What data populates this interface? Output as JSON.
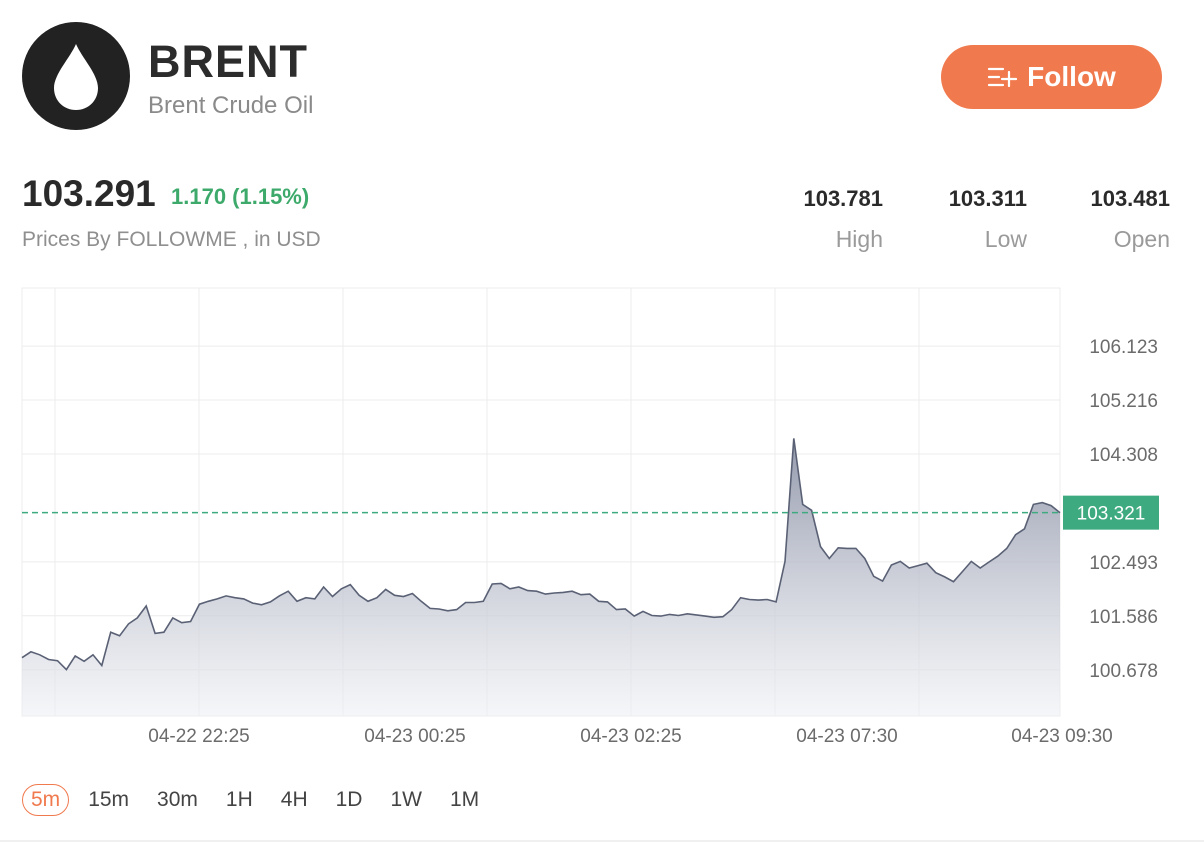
{
  "instrument": {
    "symbol": "BRENT",
    "name": "Brent Crude Oil",
    "logo_icon": "oil-drop-icon"
  },
  "follow_button": {
    "label": "Follow",
    "icon": "add-list-icon",
    "color": "#f07a4e"
  },
  "quote": {
    "price": "103.291",
    "change": "1.170 (1.15%)",
    "source": "Prices By FOLLOWME , in USD",
    "change_color": "#3daa6b"
  },
  "stats": [
    {
      "value": "103.781",
      "label": "High"
    },
    {
      "value": "103.311",
      "label": "Low"
    },
    {
      "value": "103.481",
      "label": "Open"
    }
  ],
  "chart_data": {
    "type": "area",
    "x_tick_labels": [
      "04-22 22:25",
      "04-23 00:25",
      "04-23 02:25",
      "04-23 07:30",
      "04-23 09:30"
    ],
    "y_tick_labels": [
      "106.123",
      "105.216",
      "104.308",
      "102.493",
      "101.586",
      "100.678"
    ],
    "ylim": [
      99.9,
      107.1
    ],
    "current_price": 103.321,
    "current_price_label": "103.321",
    "grid": true,
    "line_color": "#5a6175",
    "marker_color": "#3daa80",
    "values": [
      100.88,
      100.98,
      100.93,
      100.85,
      100.83,
      100.68,
      100.91,
      100.82,
      100.93,
      100.75,
      101.31,
      101.25,
      101.45,
      101.55,
      101.75,
      101.29,
      101.31,
      101.55,
      101.47,
      101.49,
      101.78,
      101.83,
      101.87,
      101.92,
      101.89,
      101.87,
      101.8,
      101.77,
      101.82,
      101.92,
      102.0,
      101.83,
      101.89,
      101.87,
      102.07,
      101.91,
      102.04,
      102.11,
      101.93,
      101.83,
      101.89,
      102.03,
      101.93,
      101.91,
      101.96,
      101.83,
      101.71,
      101.7,
      101.67,
      101.69,
      101.81,
      101.81,
      101.83,
      102.12,
      102.13,
      102.04,
      102.07,
      102.01,
      102.0,
      101.95,
      101.97,
      101.98,
      102.0,
      101.94,
      101.95,
      101.83,
      101.82,
      101.69,
      101.7,
      101.58,
      101.66,
      101.59,
      101.58,
      101.61,
      101.59,
      101.62,
      101.6,
      101.58,
      101.56,
      101.57,
      101.69,
      101.89,
      101.86,
      101.85,
      101.86,
      101.82,
      102.5,
      104.57,
      103.46,
      103.36,
      102.75,
      102.55,
      102.73,
      102.72,
      102.72,
      102.55,
      102.25,
      102.17,
      102.44,
      102.5,
      102.39,
      102.43,
      102.47,
      102.31,
      102.24,
      102.16,
      102.33,
      102.5,
      102.39,
      102.49,
      102.59,
      102.72,
      102.95,
      103.05,
      103.46,
      103.49,
      103.44,
      103.32
    ]
  }
}
